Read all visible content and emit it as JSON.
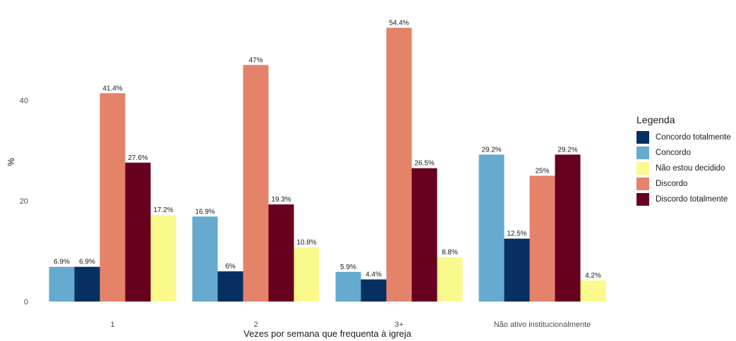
{
  "chart_data": {
    "type": "bar",
    "title": "",
    "xlabel": "Vezes por semana que frequenta à igreja",
    "ylabel": "%",
    "ylim": [
      0,
      56
    ],
    "yticks": [
      0,
      20,
      40
    ],
    "grid": false,
    "legend_title": "Legenda",
    "legend_position": "right",
    "categories": [
      "1",
      "2",
      "3+",
      "Não ativo institucionalmente"
    ],
    "series": [
      {
        "name": "Concordo",
        "color": "#67aacf",
        "values": [
          6.9,
          16.9,
          5.9,
          29.2
        ],
        "labels": [
          "6.9%",
          "16.9%",
          "5.9%",
          "29.2%"
        ]
      },
      {
        "name": "Concordo totalmente",
        "color": "#053061",
        "values": [
          6.9,
          6,
          4.4,
          12.5
        ],
        "labels": [
          "6.9%",
          "6%",
          "4.4%",
          "12.5%"
        ]
      },
      {
        "name": "Discordo",
        "color": "#e5826a",
        "values": [
          41.4,
          47,
          54.4,
          25
        ],
        "labels": [
          "41.4%",
          "47%",
          "54.4%",
          "25%"
        ]
      },
      {
        "name": "Discordo totalmente",
        "color": "#67001f",
        "values": [
          27.6,
          19.3,
          26.5,
          29.2
        ],
        "labels": [
          "27.6%",
          "19.3%",
          "26.5%",
          "29.2%"
        ]
      },
      {
        "name": "Não estou decidido",
        "color": "#fafa8c",
        "values": [
          17.2,
          10.8,
          8.8,
          4.2
        ],
        "labels": [
          "17.2%",
          "10.8%",
          "8.8%",
          "4.2%"
        ]
      }
    ],
    "legend_order": [
      "Concordo totalmente",
      "Concordo",
      "Não estou decidido",
      "Discordo",
      "Discordo totalmente"
    ]
  }
}
